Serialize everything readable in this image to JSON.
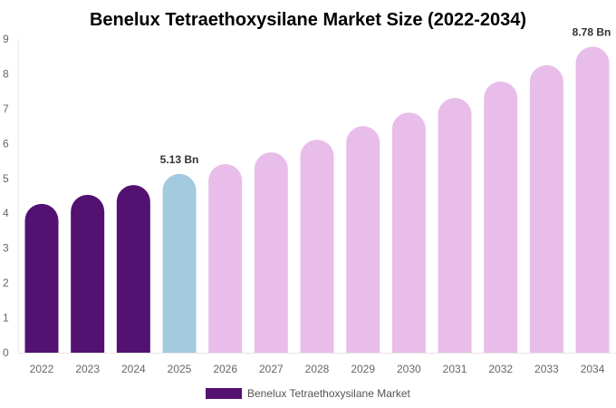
{
  "chart_data": {
    "type": "bar",
    "title": "Benelux Tetraethoxysilane Market Size (2022-2034)",
    "categories": [
      "2022",
      "2023",
      "2024",
      "2025",
      "2026",
      "2027",
      "2028",
      "2029",
      "2030",
      "2031",
      "2032",
      "2033",
      "2034"
    ],
    "series": [
      {
        "name": "Benelux Tetraethoxysilane Market",
        "values": [
          4.27,
          4.53,
          4.81,
          5.13,
          5.41,
          5.75,
          6.11,
          6.5,
          6.89,
          7.31,
          7.78,
          8.25,
          8.78
        ]
      }
    ],
    "data_labels": [
      {
        "category": "2025",
        "text": "5.13 Bn"
      },
      {
        "category": "2034",
        "text": "8.78 Bn"
      }
    ],
    "ylim": [
      0,
      9
    ],
    "yticks": [
      "0",
      "1",
      "2",
      "3",
      "4",
      "5",
      "6",
      "7",
      "8",
      "9"
    ],
    "grid": false,
    "legend": "bottom",
    "colors": {
      "historical": "#531171",
      "current": "#a3cadf",
      "forecast": "#e8bde9"
    },
    "color_by_category": [
      "historical",
      "historical",
      "historical",
      "current",
      "forecast",
      "forecast",
      "forecast",
      "forecast",
      "forecast",
      "forecast",
      "forecast",
      "forecast",
      "forecast"
    ]
  }
}
